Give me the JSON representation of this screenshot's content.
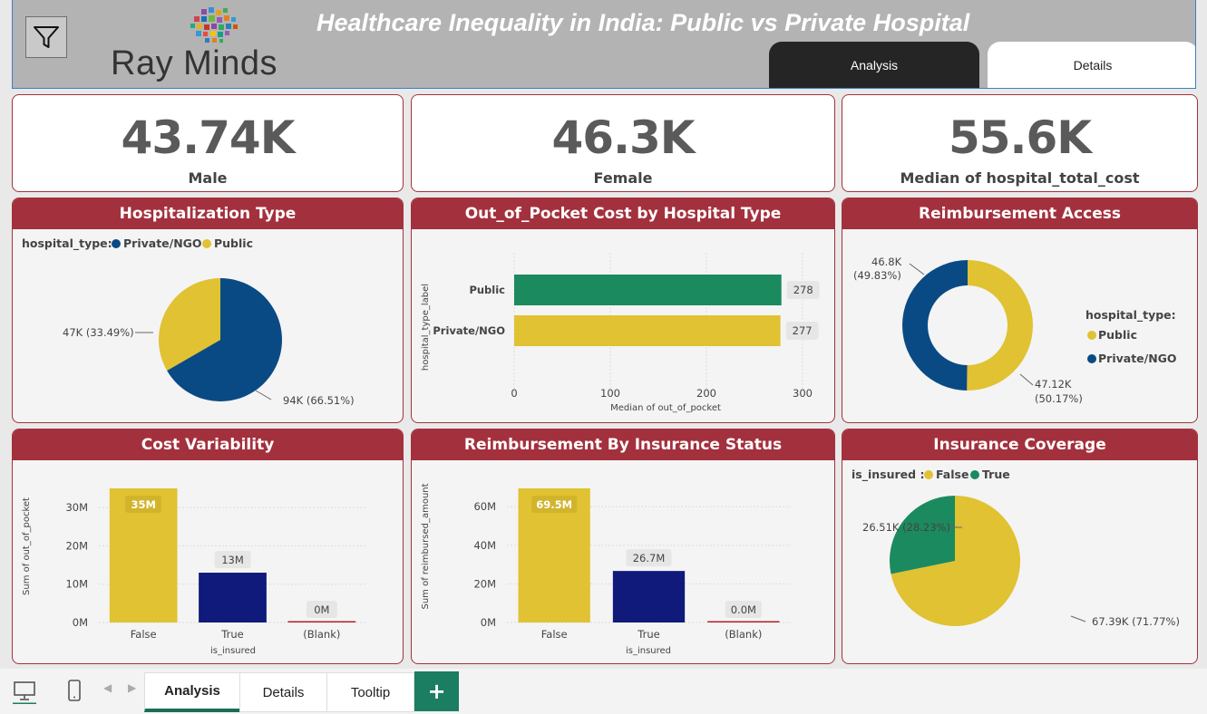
{
  "header": {
    "title": "Healthcare Inequality in India: Public vs Private Hospital",
    "logo_text": "Ray Minds",
    "tabs": [
      {
        "label": "Analysis",
        "active": true
      },
      {
        "label": "Details",
        "active": false
      }
    ]
  },
  "kpis": [
    {
      "value": "43.74K",
      "label": "Male"
    },
    {
      "value": "46.3K",
      "label": "Female"
    },
    {
      "value": "55.6K",
      "label": "Median of hospital_total_cost"
    }
  ],
  "colors": {
    "accent": "#a3313d",
    "private": "#0a4a84",
    "public": "#e0c232",
    "green": "#1b8a5f",
    "navy": "#0f1a7a",
    "red_line": "#b3202a"
  },
  "panels": {
    "hospitalization": {
      "title": "Hospitalization Type",
      "legend_title": "hospital_type:",
      "legend": [
        "Private/NGO",
        "Public"
      ]
    },
    "oop": {
      "title": "Out_of_Pocket Cost by Hospital Type"
    },
    "reimb_access": {
      "title": "Reimbursement Access",
      "legend_title": "hospital_type:",
      "legend": [
        "Public",
        "Private/NGO"
      ]
    },
    "cost_var": {
      "title": "Cost Variability"
    },
    "reimb_ins": {
      "title": "Reimbursement By Insurance Status"
    },
    "ins_cov": {
      "title": "Insurance Coverage",
      "legend_title": "is_insured :",
      "legend": [
        "False",
        "True"
      ]
    }
  },
  "chart_data": [
    {
      "type": "pie",
      "title": "Hospitalization Type",
      "legend_title": "hospital_type:",
      "slices": [
        {
          "name": "Private/NGO",
          "value": 94000,
          "label": "94K (66.51%)"
        },
        {
          "name": "Public",
          "value": 47000,
          "label": "47K (33.49%)"
        }
      ]
    },
    {
      "type": "bar",
      "orientation": "horizontal",
      "title": "Out_of_Pocket Cost by Hospital Type",
      "categories": [
        "Public",
        "Private/NGO"
      ],
      "values": [
        278,
        277
      ],
      "value_labels": [
        "278",
        "277"
      ],
      "xlabel": "Median of out_of_pocket",
      "ylabel": "hospital_type_label",
      "xlim": [
        0,
        300
      ],
      "xticks": [
        0,
        100,
        200,
        300
      ],
      "xtick_labels": [
        "0",
        "100",
        "200",
        "300"
      ]
    },
    {
      "type": "pie",
      "donut": true,
      "title": "Reimbursement Access",
      "legend_title": "hospital_type:",
      "slices": [
        {
          "name": "Public",
          "value": 47120,
          "label_value": "47.12K",
          "label_pct": "(50.17%)"
        },
        {
          "name": "Private/NGO",
          "value": 46800,
          "label_value": "46.8K",
          "label_pct": "(49.83%)"
        }
      ]
    },
    {
      "type": "bar",
      "title": "Cost Variability",
      "categories": [
        "False",
        "True",
        "(Blank)"
      ],
      "values": [
        35000000,
        13000000,
        0
      ],
      "value_labels": [
        "35M",
        "13M",
        "0M"
      ],
      "xlabel": "is_insured",
      "ylabel": "Sum of out_of_pocket",
      "ylim": [
        0,
        35000000
      ],
      "yticks": [
        0,
        10000000,
        20000000,
        30000000
      ],
      "ytick_labels": [
        "0M",
        "10M",
        "20M",
        "30M"
      ]
    },
    {
      "type": "bar",
      "title": "Reimbursement By Insurance Status",
      "categories": [
        "False",
        "True",
        "(Blank)"
      ],
      "values": [
        69500000,
        26700000,
        0
      ],
      "value_labels": [
        "69.5M",
        "26.7M",
        "0.0M"
      ],
      "xlabel": "is_insured",
      "ylabel": "Sum of reimbursed_amount",
      "ylim": [
        0,
        69500000
      ],
      "yticks": [
        0,
        20000000,
        40000000,
        60000000
      ],
      "ytick_labels": [
        "0M",
        "20M",
        "40M",
        "60M"
      ]
    },
    {
      "type": "pie",
      "title": "Insurance Coverage",
      "legend_title": "is_insured :",
      "slices": [
        {
          "name": "False",
          "value": 67390,
          "label": "67.39K (71.77%)"
        },
        {
          "name": "True",
          "value": 26510,
          "label": "26.51K (28.23%)"
        }
      ]
    }
  ],
  "bottom_tabs": [
    {
      "label": "Analysis",
      "active": true
    },
    {
      "label": "Details",
      "active": false
    },
    {
      "label": "Tooltip",
      "active": false
    }
  ],
  "icons": {
    "filter": "filter-icon",
    "desktop": "desktop-icon",
    "phone": "phone-icon",
    "add": "+"
  }
}
